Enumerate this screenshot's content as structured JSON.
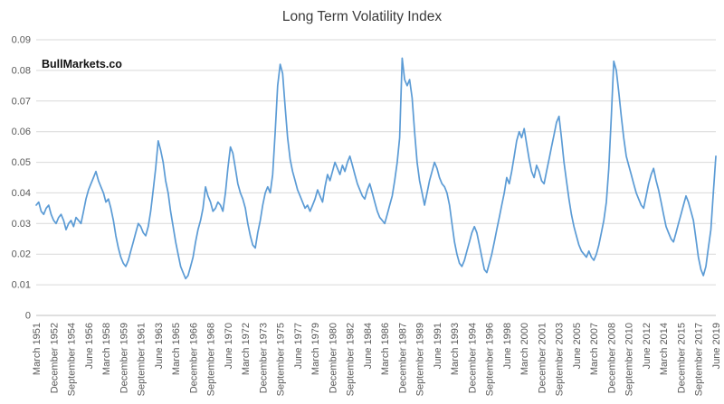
{
  "watermark": "BullMarkets.co",
  "chart_data": {
    "type": "line",
    "title": "Long Term Volatility Index",
    "xlabel": "",
    "ylabel": "",
    "legend": false,
    "grid": true,
    "series_name": "Long Term Volatility Index",
    "series_color": "#5B9BD5",
    "grid_color": "#D9D9D9",
    "axis_color": "#BFBFBF",
    "text_color": "#595959",
    "ylim": [
      0,
      0.09
    ],
    "y_tick_labels": [
      "0",
      "0.01",
      "0.02",
      "0.03",
      "0.04",
      "0.05",
      "0.06",
      "0.07",
      "0.08",
      "0.09"
    ],
    "x_start": 1951.2,
    "x_step": 0.25,
    "x_tick_start": 1951.2,
    "x_tick_step": 1.75,
    "x_tick_labels": [
      "March 1951",
      "December 1952",
      "September 1954",
      "June 1956",
      "March 1958",
      "December 1959",
      "September 1961",
      "June 1963",
      "March 1965",
      "December 1966",
      "September 1968",
      "June 1970",
      "March 1972",
      "December 1973",
      "September 1975",
      "June 1977",
      "March 1979",
      "December 1980",
      "September 1982",
      "June 1984",
      "March 1986",
      "December 1987",
      "September 1989",
      "June 1991",
      "March 1993",
      "December 1994",
      "September 1996",
      "June 1998",
      "March 2000",
      "December 2001",
      "September 2003",
      "June 2005",
      "March 2007",
      "December 2008",
      "September 2010",
      "June 2012",
      "March 2014",
      "December 2015",
      "September 2017",
      "June 2019"
    ],
    "values": [
      0.036,
      0.037,
      0.034,
      0.033,
      0.035,
      0.036,
      0.033,
      0.031,
      0.03,
      0.032,
      0.033,
      0.031,
      0.028,
      0.03,
      0.031,
      0.029,
      0.032,
      0.031,
      0.03,
      0.034,
      0.038,
      0.041,
      0.043,
      0.045,
      0.047,
      0.044,
      0.042,
      0.04,
      0.037,
      0.038,
      0.035,
      0.031,
      0.026,
      0.022,
      0.019,
      0.017,
      0.016,
      0.018,
      0.021,
      0.024,
      0.027,
      0.03,
      0.029,
      0.027,
      0.026,
      0.029,
      0.034,
      0.041,
      0.048,
      0.057,
      0.054,
      0.05,
      0.044,
      0.04,
      0.034,
      0.029,
      0.024,
      0.02,
      0.016,
      0.014,
      0.012,
      0.013,
      0.016,
      0.019,
      0.024,
      0.028,
      0.031,
      0.035,
      0.042,
      0.039,
      0.037,
      0.034,
      0.035,
      0.037,
      0.036,
      0.034,
      0.04,
      0.048,
      0.055,
      0.053,
      0.048,
      0.043,
      0.04,
      0.038,
      0.035,
      0.03,
      0.026,
      0.023,
      0.022,
      0.027,
      0.031,
      0.036,
      0.04,
      0.042,
      0.04,
      0.046,
      0.06,
      0.075,
      0.082,
      0.079,
      0.068,
      0.058,
      0.051,
      0.047,
      0.044,
      0.041,
      0.039,
      0.037,
      0.035,
      0.036,
      0.034,
      0.036,
      0.038,
      0.041,
      0.039,
      0.037,
      0.042,
      0.046,
      0.044,
      0.047,
      0.05,
      0.048,
      0.046,
      0.049,
      0.047,
      0.05,
      0.052,
      0.049,
      0.046,
      0.043,
      0.041,
      0.039,
      0.038,
      0.041,
      0.043,
      0.04,
      0.037,
      0.034,
      0.032,
      0.031,
      0.03,
      0.033,
      0.036,
      0.039,
      0.044,
      0.05,
      0.058,
      0.084,
      0.077,
      0.075,
      0.077,
      0.071,
      0.06,
      0.05,
      0.044,
      0.04,
      0.036,
      0.04,
      0.044,
      0.047,
      0.05,
      0.048,
      0.045,
      0.043,
      0.042,
      0.04,
      0.036,
      0.03,
      0.024,
      0.02,
      0.017,
      0.016,
      0.018,
      0.021,
      0.024,
      0.027,
      0.029,
      0.027,
      0.023,
      0.019,
      0.015,
      0.014,
      0.017,
      0.02,
      0.024,
      0.028,
      0.032,
      0.036,
      0.04,
      0.045,
      0.043,
      0.047,
      0.052,
      0.057,
      0.06,
      0.058,
      0.061,
      0.056,
      0.051,
      0.047,
      0.045,
      0.049,
      0.047,
      0.044,
      0.043,
      0.047,
      0.051,
      0.055,
      0.059,
      0.063,
      0.065,
      0.058,
      0.05,
      0.044,
      0.038,
      0.033,
      0.029,
      0.026,
      0.023,
      0.021,
      0.02,
      0.019,
      0.021,
      0.019,
      0.018,
      0.02,
      0.023,
      0.027,
      0.031,
      0.037,
      0.048,
      0.065,
      0.083,
      0.08,
      0.073,
      0.065,
      0.058,
      0.052,
      0.049,
      0.046,
      0.043,
      0.04,
      0.038,
      0.036,
      0.035,
      0.039,
      0.043,
      0.046,
      0.048,
      0.044,
      0.041,
      0.037,
      0.033,
      0.029,
      0.027,
      0.025,
      0.024,
      0.027,
      0.03,
      0.033,
      0.036,
      0.039,
      0.037,
      0.034,
      0.031,
      0.025,
      0.019,
      0.015,
      0.013,
      0.016,
      0.022,
      0.028,
      0.04,
      0.052
    ]
  }
}
